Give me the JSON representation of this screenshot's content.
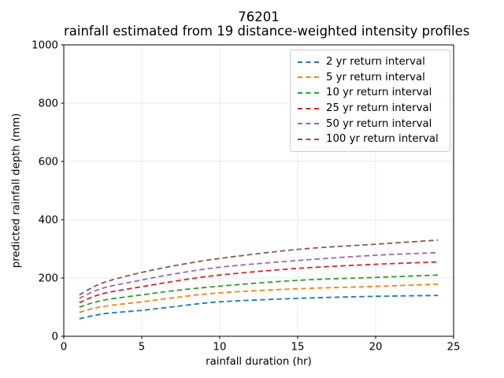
{
  "chart_data": {
    "type": "line",
    "title": "76201",
    "subtitle": "rainfall estimated from 19 distance-weighted intensity profiles",
    "xlabel": "rainfall duration (hr)",
    "ylabel": "predicted rainfall depth (mm)",
    "xlim": [
      0,
      25
    ],
    "ylim": [
      0,
      1000
    ],
    "xticks": [
      "0",
      "5",
      "10",
      "15",
      "20",
      "25"
    ],
    "yticks": [
      "0",
      "200",
      "400",
      "600",
      "800",
      "1000"
    ],
    "xtick_values": [
      0,
      5,
      10,
      15,
      20,
      25
    ],
    "ytick_values": [
      0,
      200,
      400,
      600,
      800,
      1000
    ],
    "grid": true,
    "grid_color": "#e9e9e9",
    "axis_color": "#000000",
    "legend_position": "upper right",
    "line_style": "dashed",
    "x": [
      1,
      2,
      3,
      5,
      7,
      10,
      15,
      20,
      24
    ],
    "series": [
      {
        "name": "2 yr return interval",
        "color": "#1f77b4",
        "values": [
          60,
          72,
          80,
          89,
          101,
          118,
          130,
          137,
          140
        ]
      },
      {
        "name": "5 yr return interval",
        "color": "#ff7f0e",
        "values": [
          82,
          97,
          106,
          118,
          132,
          149,
          163,
          171,
          179
        ]
      },
      {
        "name": "10 yr return interval",
        "color": "#2ca02c",
        "values": [
          100,
          117,
          128,
          142,
          156,
          172,
          192,
          202,
          210
        ]
      },
      {
        "name": "25 yr return interval",
        "color": "#d62728",
        "values": [
          115,
          138,
          152,
          170,
          188,
          210,
          233,
          247,
          255
        ]
      },
      {
        "name": "50 yr return interval",
        "color": "#9467bd",
        "values": [
          130,
          156,
          172,
          193,
          213,
          237,
          260,
          278,
          287
        ]
      },
      {
        "name": "100 yr return interval",
        "color": "#8c564b",
        "values": [
          142,
          172,
          192,
          219,
          241,
          267,
          298,
          316,
          330
        ]
      }
    ]
  }
}
